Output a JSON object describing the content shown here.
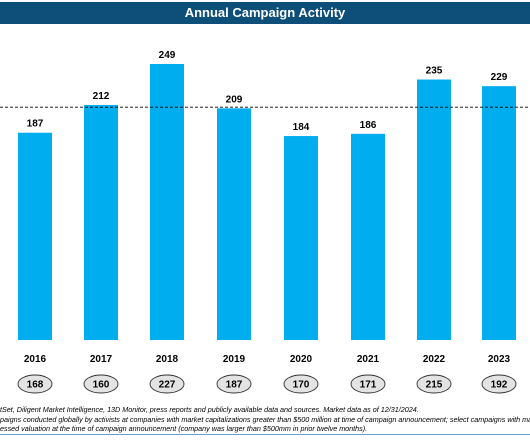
{
  "title": "Annual Campaign Activity",
  "colors": {
    "title_bg": "#0d4f79",
    "bar": "#00aeef",
    "oval_fill": "#e3e3e3",
    "reference_line": "#000000"
  },
  "chart_data": {
    "type": "bar",
    "title": "Annual Campaign Activity",
    "categories": [
      "2016",
      "2017",
      "2018",
      "2019",
      "2020",
      "2021",
      "2022",
      "2023"
    ],
    "values": [
      187,
      212,
      249,
      209,
      184,
      186,
      235,
      229
    ],
    "data_labels": [
      "187",
      "212",
      "249",
      "209",
      "184",
      "186",
      "235",
      "229"
    ],
    "secondary_values": [
      168,
      160,
      227,
      187,
      170,
      171,
      215,
      192
    ],
    "secondary_labels": [
      "168",
      "160",
      "227",
      "187",
      "170",
      "171",
      "215",
      "192"
    ],
    "reference_line": {
      "style": "dashed",
      "value": 210
    },
    "xlabel": "",
    "ylabel": "",
    "ylim": [
      0,
      260
    ],
    "grid": false,
    "legend": "none"
  },
  "footnotes": [
    "tSet, Diligent Market Intelligence, 13D Monitor, press reports and publicly available data and sources. Market data as of 12/31/2024.",
    "paigns conducted globally by activists at companies with market capitalizations greater than $500 million at time of campaign announcement; select campaigns with marke",
    "essed valuation at the time of campaign announcement (company was larger than $500mm in prior twelve months)."
  ]
}
